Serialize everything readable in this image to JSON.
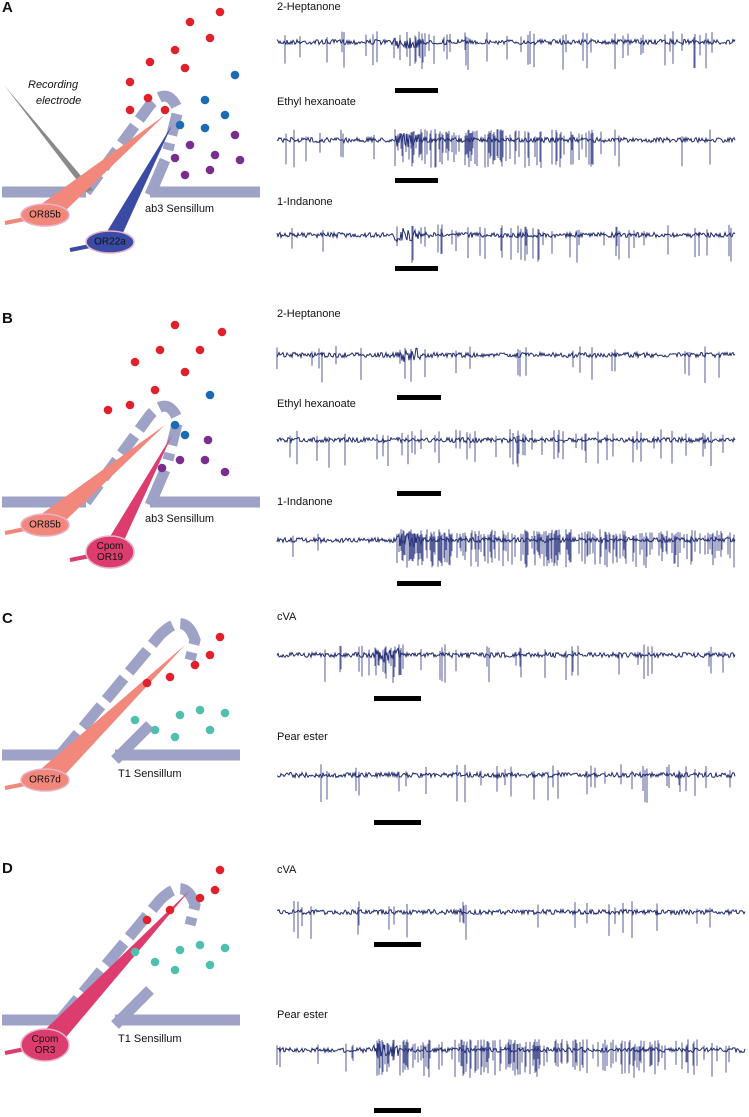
{
  "panels": [
    {
      "label": "A",
      "electrode": [
        "Recording",
        "electrode"
      ],
      "neurons": [
        [
          "OR85b"
        ],
        [
          "OR22a"
        ]
      ],
      "sensillum": "ab3 Sensillum",
      "traces": [
        "2-Heptanone",
        "Ethyl hexanoate",
        "1-Indanone"
      ]
    },
    {
      "label": "B",
      "neurons": [
        [
          "OR85b"
        ],
        [
          "Cpom",
          "OR19"
        ]
      ],
      "sensillum": "ab3 Sensillum",
      "traces": [
        "2-Heptanone",
        "Ethyl hexanoate",
        "1-Indanone"
      ]
    },
    {
      "label": "C",
      "neurons": [
        [
          "OR67d"
        ]
      ],
      "sensillum": "T1 Sensillum",
      "traces": [
        "cVA",
        "Pear ester"
      ]
    },
    {
      "label": "D",
      "neurons": [
        [
          "Cpom",
          "OR3"
        ]
      ],
      "sensillum": "T1 Sensillum",
      "traces": [
        "cVA",
        "Pear ester"
      ]
    }
  ]
}
